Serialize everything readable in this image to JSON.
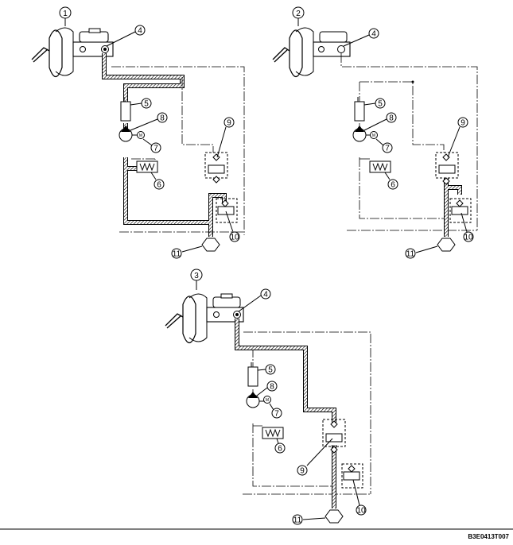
{
  "figure_code": "B3E0413T007",
  "diagrams": [
    {
      "id": "1",
      "callouts": [
        "4",
        "5",
        "8",
        "7",
        "6",
        "9",
        "10",
        "11"
      ]
    },
    {
      "id": "2",
      "callouts": [
        "4",
        "5",
        "8",
        "7",
        "6",
        "9",
        "10",
        "11"
      ]
    },
    {
      "id": "3",
      "callouts": [
        "4",
        "5",
        "8",
        "7",
        "6",
        "9",
        "10",
        "11"
      ]
    }
  ]
}
